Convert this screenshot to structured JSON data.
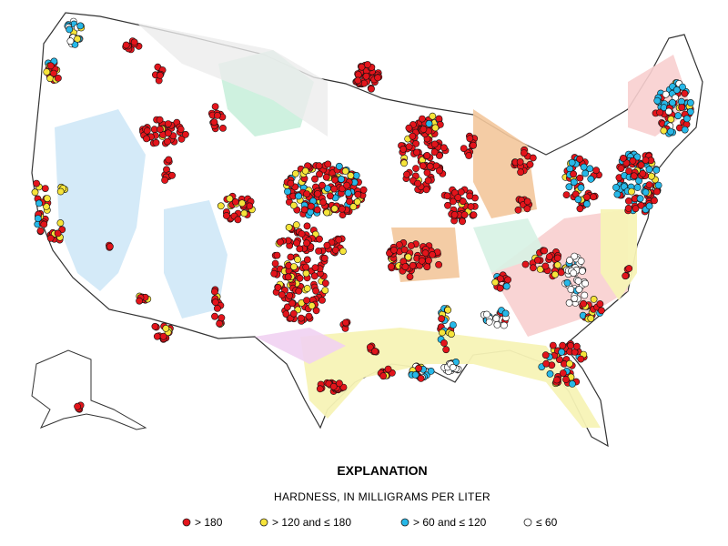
{
  "explanation": {
    "title": "EXPLANATION",
    "subtitle": "HARDNESS, IN MILLIGRAMS PER LITER",
    "legend": [
      {
        "label": "> 180",
        "color": "#e3141b"
      },
      {
        "label": "> 120 and ≤ 180",
        "color": "#f6e43a"
      },
      {
        "label": "> 60 and ≤ 120",
        "color": "#27b8e8"
      },
      {
        "label": "≤ 60",
        "color": "#ffffff"
      }
    ]
  }
}
